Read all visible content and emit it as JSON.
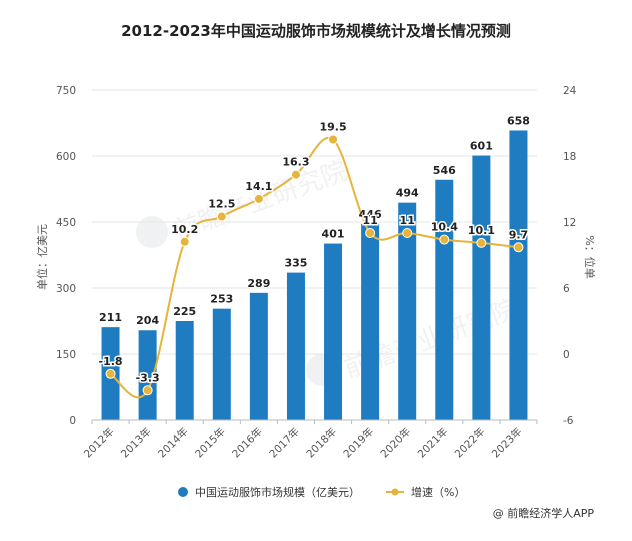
{
  "chart_data": {
    "type": "bar",
    "title": "2012-2023年中国运动服饰市场规模统计及增长情况预测",
    "categories": [
      "2012年",
      "2013年",
      "2014年",
      "2015年",
      "2016年",
      "2017年",
      "2018年",
      "2019年",
      "2020年",
      "2021年",
      "2022年",
      "2023年"
    ],
    "series": [
      {
        "name": "中国运动服饰市场规模（亿美元）",
        "type": "bar",
        "axis": "left",
        "color": "#1f7cc1",
        "values": [
          211,
          204,
          225,
          253,
          289,
          335,
          401,
          446,
          494,
          546,
          601,
          658
        ]
      },
      {
        "name": "增速（%）",
        "type": "line",
        "axis": "right",
        "color": "#e6b43c",
        "values": [
          -1.8,
          -3.3,
          10.2,
          12.5,
          14.1,
          16.3,
          19.5,
          11,
          11,
          10.4,
          10.1,
          9.7
        ]
      }
    ],
    "ylabel": "单位：亿美元",
    "ylim": [
      0,
      750
    ],
    "yticks": [
      "0",
      "150",
      "300",
      "450",
      "600",
      "750"
    ],
    "y2label": "%：位单",
    "y2lim": [
      -6,
      24
    ],
    "y2ticks": [
      "-6",
      "0",
      "6",
      "12",
      "18",
      "24"
    ],
    "grid": true,
    "legend": "bottom"
  },
  "source": "@ 前瞻经济学人APP",
  "watermark": "前瞻产业研究院"
}
